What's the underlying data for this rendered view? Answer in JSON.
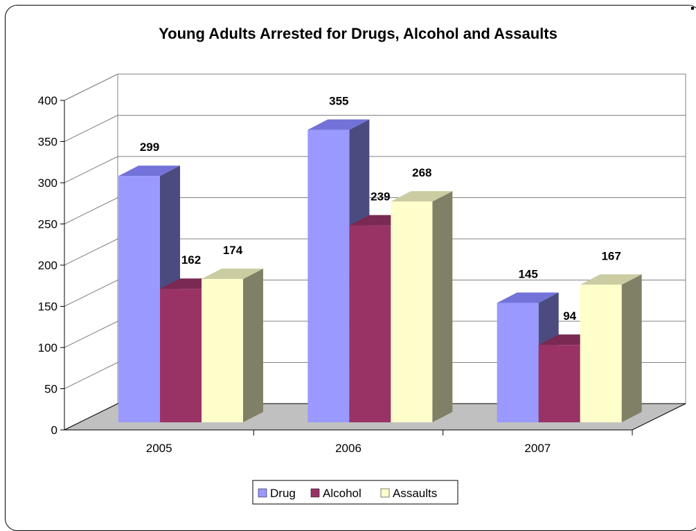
{
  "chart_data": {
    "type": "bar",
    "title": "Young Adults Arrested for Drugs, Alcohol and Assaults",
    "categories": [
      "2005",
      "2006",
      "2007"
    ],
    "series": [
      {
        "name": "Drug",
        "values": [
          299,
          355,
          145
        ],
        "color": "#9999ff",
        "side_color": "#4b4b80",
        "top_color": "#7272d8"
      },
      {
        "name": "Alcohol",
        "values": [
          162,
          239,
          94
        ],
        "color": "#993366",
        "side_color": "#4d1a33",
        "top_color": "#7a2952"
      },
      {
        "name": "Assaults",
        "values": [
          174,
          268,
          167
        ],
        "color": "#ffffcc",
        "side_color": "#808066",
        "top_color": "#cccca3"
      }
    ],
    "y_ticks": [
      "0",
      "50",
      "100",
      "150",
      "200",
      "250",
      "300",
      "350",
      "400"
    ],
    "ylim": [
      0,
      400
    ],
    "grid": true,
    "legend_position": "bottom",
    "floor_color": "#c0c0c0"
  }
}
